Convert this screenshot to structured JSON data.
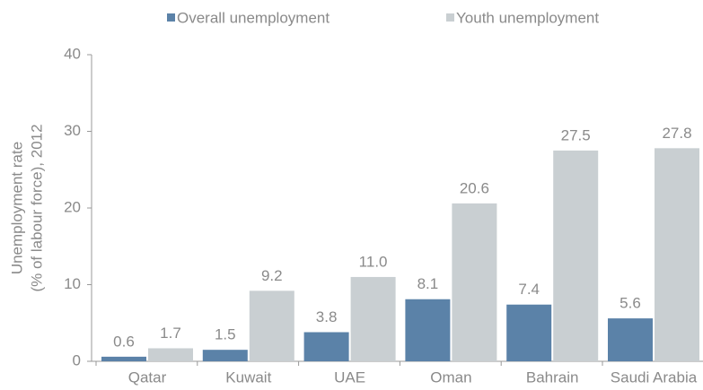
{
  "chart_data": {
    "type": "bar",
    "ylabel": [
      "Unemployment rate",
      "(% of labour force), 2012"
    ],
    "categories": [
      "Qatar",
      "Kuwait",
      "UAE",
      "Oman",
      "Bahrain",
      "Saudi Arabia"
    ],
    "series": [
      {
        "name": "Overall unemployment",
        "color": "#5b82a8",
        "values": [
          0.6,
          1.5,
          3.8,
          8.1,
          7.4,
          5.6
        ]
      },
      {
        "name": "Youth unemployment",
        "color": "#c9cfd2",
        "values": [
          1.7,
          9.2,
          11.0,
          20.6,
          27.5,
          27.8
        ],
        "value_labels": [
          "1.7",
          "9.2",
          "11.0",
          "20.6",
          "27.5",
          "27.8"
        ]
      }
    ],
    "ylim": [
      0,
      40
    ],
    "yticks": [
      0,
      10,
      20,
      30,
      40
    ],
    "legend": "top"
  }
}
